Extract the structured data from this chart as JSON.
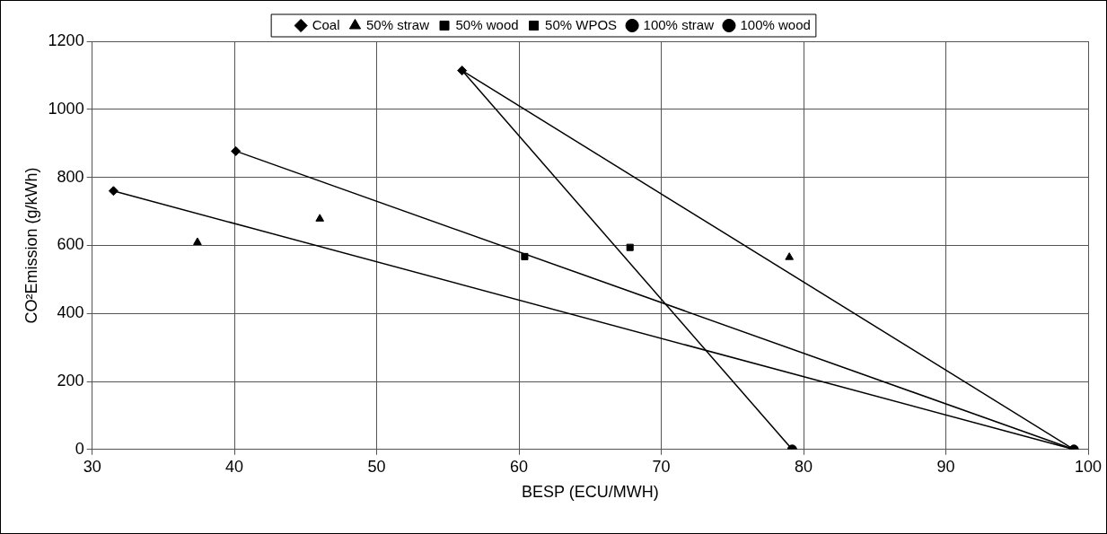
{
  "chart_data": {
    "type": "scatter",
    "xlabel": "BESP (ECU/MWH)",
    "ylabel": "CO²Emission (g/kWh)",
    "xlim": [
      30,
      100
    ],
    "xticks": [
      30,
      40,
      50,
      60,
      70,
      80,
      90,
      100
    ],
    "ylim": [
      0,
      1200
    ],
    "yticks": [
      0,
      200,
      400,
      600,
      800,
      1000,
      1200
    ],
    "grid": true,
    "legend": "top",
    "series": [
      {
        "name": "Coal",
        "color": "#000000",
        "marker": "diamond",
        "x": [
          31.5,
          40.1,
          56.0
        ],
        "values": [
          760,
          877,
          1114
        ]
      },
      {
        "name": "50% straw",
        "color": "#000000",
        "marker": "triangle",
        "x": [
          37.4,
          46.0,
          79.0
        ],
        "values": [
          609,
          678,
          565
        ]
      },
      {
        "name": "50% wood",
        "color": "#000000",
        "marker": "square",
        "x": [
          67.8
        ],
        "values": [
          594
        ]
      },
      {
        "name": "50% WPOS",
        "color": "#000000",
        "marker": "square",
        "x": [
          60.4
        ],
        "values": [
          567
        ]
      },
      {
        "name": "100% straw",
        "color": "#000000",
        "marker": "circle",
        "x": [
          99.0
        ],
        "values": [
          0
        ]
      },
      {
        "name": "100% wood",
        "color": "#000000",
        "marker": "circle",
        "x": [
          79.2
        ],
        "values": [
          0
        ]
      },
      {
        "type": "line",
        "color": "#000000",
        "marker": "none",
        "x": [
          31.5,
          99.0
        ],
        "values": [
          760,
          0
        ]
      },
      {
        "type": "line",
        "color": "#000000",
        "marker": "none",
        "x": [
          40.1,
          99.0
        ],
        "values": [
          877,
          0
        ]
      },
      {
        "type": "line",
        "color": "#000000",
        "marker": "none",
        "x": [
          56.0,
          99.0
        ],
        "values": [
          1114,
          0
        ]
      },
      {
        "type": "line",
        "color": "#000000",
        "marker": "none",
        "x": [
          56.0,
          79.2
        ],
        "values": [
          1114,
          0
        ]
      }
    ]
  }
}
